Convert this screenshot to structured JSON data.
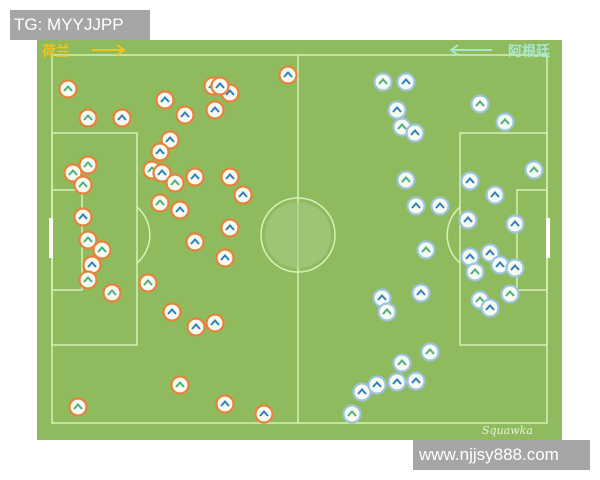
{
  "watermarks": {
    "top_left": "TG: MYYJJPP",
    "bottom_right": "www.njjsy888.com"
  },
  "teams": {
    "left": {
      "name": "荷兰",
      "direction": "right",
      "ring_color": "#e8823a"
    },
    "right": {
      "name": "阿根廷",
      "direction": "left",
      "ring_color": "#9cc4de"
    }
  },
  "brand": "Squawka",
  "colors": {
    "pitch": "#8fba5e",
    "lines": "#d9efb8",
    "chevron_blue": "#2f7fc1",
    "chevron_green": "#4caf7d"
  }
}
